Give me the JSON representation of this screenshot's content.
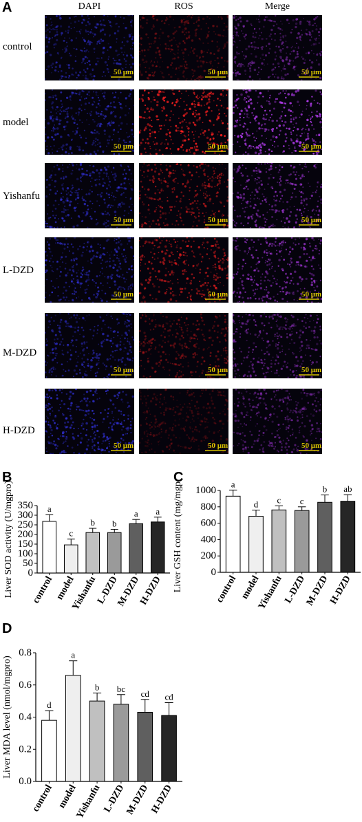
{
  "panels": {
    "A": "A",
    "B": "B",
    "C": "C",
    "D": "D"
  },
  "microscopy": {
    "columns": [
      "DAPI",
      "ROS",
      "Merge"
    ],
    "rows": [
      "control",
      "model",
      "Yishanfu",
      "L-DZD",
      "M-DZD",
      "H-DZD"
    ],
    "scale_bar": "50 μm",
    "colors": {
      "dapi": "#3a3aff",
      "ros": "#ff2020",
      "merge": "#c040ff",
      "scale": "#d8c300"
    },
    "intensity": {
      "dapi": [
        0.55,
        0.6,
        0.6,
        0.6,
        0.55,
        0.7
      ],
      "ros": [
        0.35,
        0.9,
        0.6,
        0.65,
        0.4,
        0.25
      ],
      "merge": [
        0.45,
        0.85,
        0.6,
        0.65,
        0.5,
        0.45
      ]
    }
  },
  "chart_data": [
    {
      "type": "bar",
      "panel": "B",
      "ylabel": "Liver SOD activity (U/mgpro)",
      "categories": [
        "control",
        "model",
        "Yishanfu",
        "L-DZD",
        "M-DZD",
        "H-DZD"
      ],
      "values": [
        268,
        146,
        210,
        210,
        256,
        265
      ],
      "errors": [
        35,
        30,
        22,
        17,
        22,
        25
      ],
      "letters": [
        "a",
        "c",
        "b",
        "b",
        "a",
        "a"
      ],
      "fills": [
        "#ffffff",
        "#efefef",
        "#c0c0c0",
        "#9a9a9a",
        "#5f5f5f",
        "#262626"
      ],
      "ylim": [
        0,
        350
      ],
      "yticks": [
        "0",
        "50",
        "100",
        "150",
        "200",
        "250",
        "300",
        "350"
      ]
    },
    {
      "type": "bar",
      "panel": "C",
      "ylabel": "Liver GSH content (mg/mgpro)",
      "categories": [
        "control",
        "model",
        "Yishanfu",
        "L-DZD",
        "M-DZD",
        "H-DZD"
      ],
      "values": [
        930,
        685,
        762,
        755,
        855,
        868
      ],
      "errors": [
        75,
        75,
        50,
        45,
        90,
        80
      ],
      "letters": [
        "a",
        "d",
        "c",
        "c",
        "b",
        "ab"
      ],
      "fills": [
        "#ffffff",
        "#efefef",
        "#c0c0c0",
        "#9a9a9a",
        "#5f5f5f",
        "#262626"
      ],
      "ylim": [
        0,
        1000
      ],
      "yticks": [
        "0",
        "200",
        "400",
        "600",
        "800",
        "1000"
      ]
    },
    {
      "type": "bar",
      "panel": "D",
      "ylabel": "Liver MDA level (nmol/mgpro)",
      "categories": [
        "control",
        "model",
        "Yishanfu",
        "L-DZD",
        "M-DZD",
        "H-DZD"
      ],
      "values": [
        0.38,
        0.66,
        0.5,
        0.48,
        0.43,
        0.41
      ],
      "errors": [
        0.06,
        0.09,
        0.05,
        0.06,
        0.08,
        0.08
      ],
      "letters": [
        "d",
        "a",
        "b",
        "bc",
        "cd",
        "cd"
      ],
      "fills": [
        "#ffffff",
        "#efefef",
        "#c0c0c0",
        "#9a9a9a",
        "#5f5f5f",
        "#262626"
      ],
      "ylim": [
        0,
        0.8
      ],
      "yticks": [
        "0.0",
        "0.2",
        "0.4",
        "0.6",
        "0.8"
      ]
    }
  ]
}
